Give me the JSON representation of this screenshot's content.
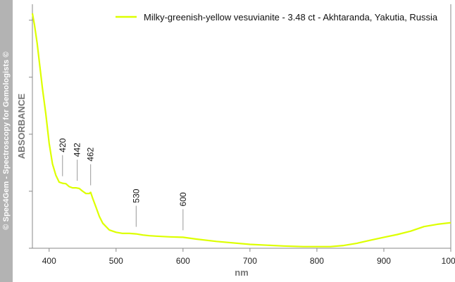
{
  "watermark": "© Spec4Gem - Spectroscopy for Gemologists ©",
  "chart_data": {
    "type": "line",
    "title": "",
    "xlabel": "nm",
    "ylabel": "ABSORBANCE",
    "xlim": [
      375,
      1000
    ],
    "ylim": [
      0,
      1.07
    ],
    "x_ticks": [
      400,
      500,
      600,
      700,
      800,
      900,
      1000
    ],
    "x_tick_labels": [
      "400",
      "500",
      "600",
      "700",
      "800",
      "900",
      "1000"
    ],
    "y_ticks": [
      0,
      0.25,
      0.5,
      0.75,
      1.0
    ],
    "y_tick_labels": [],
    "grid": false,
    "legend_position": "top-right",
    "series": [
      {
        "name": "Milky-greenish-yellow vesuvianite - 3.48 ct - Akhtaranda, Yakutia, Russia",
        "color": "#ddff00",
        "x": [
          375,
          378,
          382,
          386,
          390,
          395,
          400,
          405,
          410,
          415,
          420,
          425,
          430,
          435,
          440,
          445,
          450,
          455,
          460,
          462,
          465,
          470,
          475,
          480,
          490,
          500,
          510,
          520,
          530,
          540,
          550,
          560,
          580,
          600,
          620,
          650,
          700,
          750,
          780,
          800,
          820,
          840,
          860,
          880,
          900,
          920,
          940,
          960,
          980,
          1000
        ],
        "values": [
          1.03,
          0.98,
          0.9,
          0.8,
          0.7,
          0.59,
          0.46,
          0.37,
          0.32,
          0.29,
          0.285,
          0.283,
          0.27,
          0.265,
          0.265,
          0.262,
          0.25,
          0.24,
          0.24,
          0.245,
          0.22,
          0.18,
          0.14,
          0.11,
          0.08,
          0.07,
          0.065,
          0.065,
          0.063,
          0.058,
          0.055,
          0.053,
          0.05,
          0.048,
          0.04,
          0.03,
          0.017,
          0.01,
          0.007,
          0.007,
          0.007,
          0.012,
          0.022,
          0.035,
          0.048,
          0.06,
          0.075,
          0.095,
          0.105,
          0.112
        ]
      }
    ],
    "annotations": [
      {
        "label": "420",
        "x": 420,
        "y": 0.285
      },
      {
        "label": "442",
        "x": 442,
        "y": 0.265
      },
      {
        "label": "462",
        "x": 462,
        "y": 0.245
      },
      {
        "label": "530",
        "x": 530,
        "y": 0.063
      },
      {
        "label": "600",
        "x": 600,
        "y": 0.048
      }
    ]
  }
}
